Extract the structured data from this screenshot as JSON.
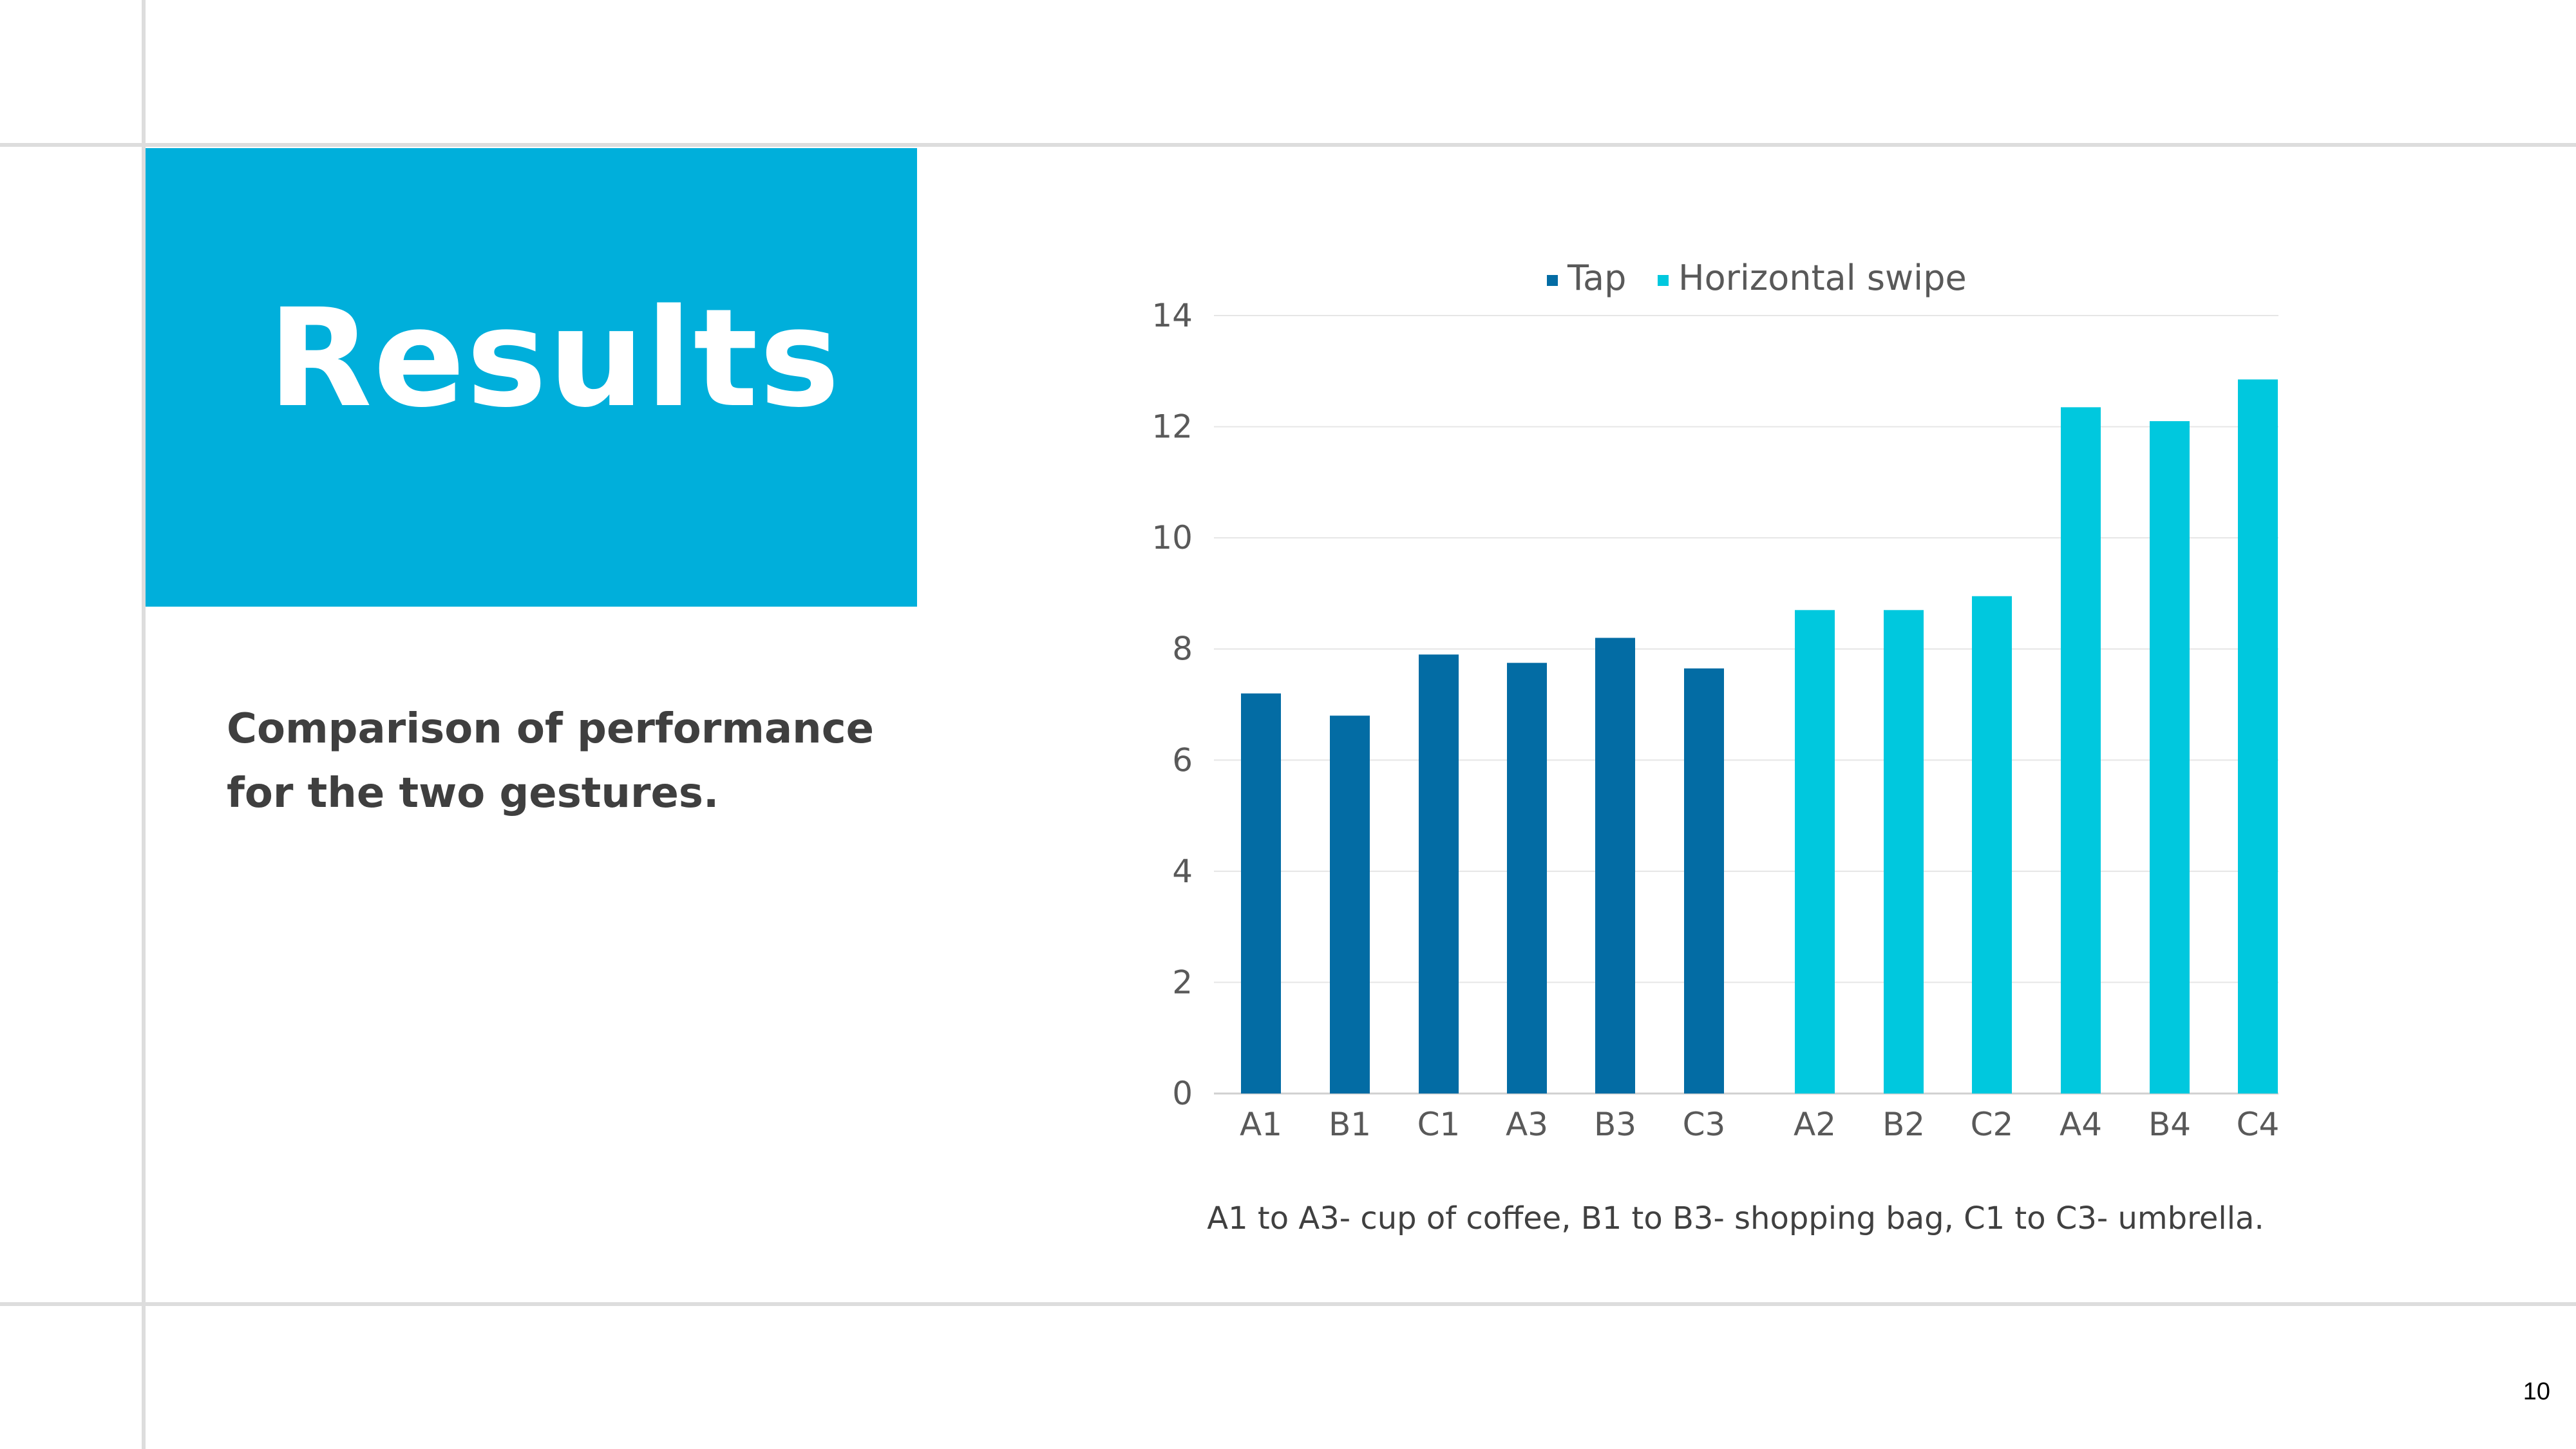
{
  "slide": {
    "title": "Results",
    "subtitle": "Comparison of performance for the two gestures.",
    "page_number": "10",
    "accent_color": "#00afdb"
  },
  "chart_data": {
    "type": "bar",
    "categories": [
      "A1",
      "B1",
      "C1",
      "A3",
      "B3",
      "C3",
      "A2",
      "B2",
      "C2",
      "A4",
      "B4",
      "C4"
    ],
    "series": [
      {
        "name": "Tap",
        "color": "#036ca4",
        "values": [
          7.2,
          6.8,
          7.9,
          7.75,
          8.2,
          7.65,
          null,
          null,
          null,
          null,
          null,
          null
        ]
      },
      {
        "name": "Horizontal swipe",
        "color": "#00c8de",
        "values": [
          null,
          null,
          null,
          null,
          null,
          null,
          8.7,
          8.7,
          8.95,
          12.35,
          12.1,
          12.85
        ]
      }
    ],
    "ylim": [
      0,
      14
    ],
    "yticks": [
      "0",
      "2",
      "4",
      "6",
      "8",
      "10",
      "12",
      "14"
    ],
    "grid": true,
    "legend_position": "top",
    "caption": "A1 to A3- cup of coffee, B1 to B3- shopping bag, C1 to C3- umbrella."
  }
}
